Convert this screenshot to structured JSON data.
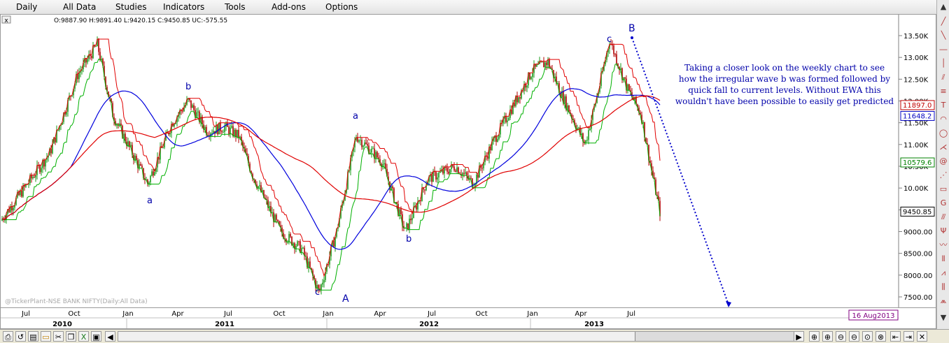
{
  "menu": {
    "items": [
      "Daily",
      "All Data",
      "Studies",
      "Indicators",
      "Tools",
      "Add-ons",
      "Options"
    ]
  },
  "chart": {
    "ohlc_readout": "O:9887.90  H:9891.40  L:9420.15  C:9450.85  UC:-575.55",
    "watermark": "@TickerPlant-NSE BANK NIFTY(Daily:All Data)",
    "annotation_lines": [
      "Taking a closer look on the weekly chart to see",
      "how the irregular wave b was formed followed by",
      "quick fall to current levels. Without EWA this",
      "wouldn't have been possible to easily get predicted"
    ],
    "wave_labels": [
      "a",
      "b",
      "c",
      "a",
      "b",
      "c",
      "A",
      "B"
    ],
    "price_ticks": [
      "13.50K",
      "13.00K",
      "12.50K",
      "12.00K",
      "11.50K",
      "11.00K",
      "10.50K",
      "10.00K",
      "9500.00",
      "9000.00",
      "8500.00",
      "8000.00",
      "7500.00"
    ],
    "price_markers": [
      {
        "label": "11897.0",
        "color": "#c00000"
      },
      {
        "label": "11648.2",
        "color": "#0000c0"
      },
      {
        "label": "10579.6",
        "color": "#008000"
      },
      {
        "label": "9450.85",
        "color": "#000000"
      }
    ],
    "date_stamp": "16 Aug2013",
    "month_ticks": [
      "Jul",
      "Oct",
      "Jan",
      "Apr",
      "Jul",
      "Oct",
      "Jan",
      "Apr",
      "Jul",
      "Oct",
      "Jan",
      "Apr",
      "Jul"
    ],
    "year_ticks": [
      "2010",
      "2011",
      "2012",
      "2013"
    ],
    "colors": {
      "up_candle": "#1a9a1a",
      "down_candle": "#b00000",
      "blue_ma": "#0000dd",
      "red_ma": "#e00000",
      "green_stop": "#00b000",
      "red_stop": "#e00000",
      "annotation_text": "#0000aa",
      "projection": "#0000cc"
    }
  },
  "chart_data": {
    "type": "candlestick",
    "title": "@TickerPlant-NSE BANK NIFTY(Daily:All Data)",
    "ylim": [
      7300,
      13800
    ],
    "yticks": [
      7500,
      8000,
      8500,
      9000,
      9500,
      10000,
      10500,
      11000,
      11500,
      12000,
      12500,
      13000,
      13500
    ],
    "last": {
      "open": 9887.9,
      "high": 9891.4,
      "low": 9420.15,
      "close": 9450.85
    },
    "x": [
      "2010-Jul",
      "2010-Oct",
      "2011-Jan",
      "2011-Apr",
      "2011-Jul",
      "2011-Oct",
      "2012-Jan",
      "2012-Apr",
      "2012-Jul",
      "2012-Oct",
      "2013-Jan",
      "2013-Apr",
      "2013-Jul",
      "2013-Aug"
    ],
    "price_path": [
      9250,
      13300,
      10100,
      12000,
      11400,
      9000,
      7600,
      11200,
      9000,
      11100,
      12900,
      11000,
      13400,
      9450
    ],
    "markers": [
      {
        "label": "a",
        "x": "2011-Jan",
        "y": 10100
      },
      {
        "label": "b",
        "x": "2011-Apr",
        "y": 12000
      },
      {
        "label": "c",
        "x": "2011-Dec",
        "y": 7600
      },
      {
        "label": "a",
        "x": "2012-Feb",
        "y": 11200
      },
      {
        "label": "b",
        "x": "2012-May",
        "y": 9000
      },
      {
        "label": "c",
        "x": "2013-May",
        "y": 13400
      }
    ],
    "projection": {
      "label": "B",
      "from": {
        "x": "2013-Jun",
        "y": 13400
      },
      "to": {
        "x": "2013-Dec",
        "y": 7400
      }
    }
  }
}
